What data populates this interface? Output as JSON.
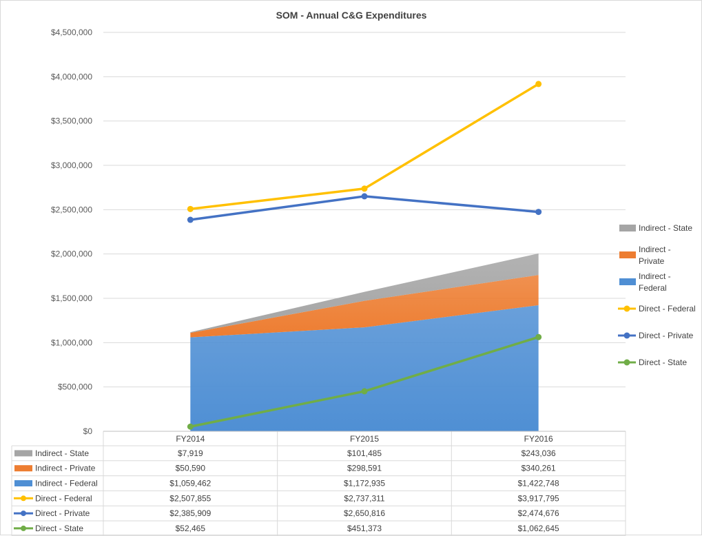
{
  "chart_data": {
    "type": "area+line with data table",
    "title": "SOM - Annual C&G Expenditures",
    "categories": [
      "FY2014",
      "FY2015",
      "FY2016"
    ],
    "ylim": [
      0,
      4500000
    ],
    "yticks": [
      0,
      500000,
      1000000,
      1500000,
      2000000,
      2500000,
      3000000,
      3500000,
      4000000,
      4500000
    ],
    "ytick_labels": [
      "$0",
      "$500,000",
      "$1,000,000",
      "$1,500,000",
      "$2,000,000",
      "$2,500,000",
      "$3,000,000",
      "$3,500,000",
      "$4,000,000",
      "$4,500,000"
    ],
    "grid": true,
    "legend_position": "right",
    "stacked_area_series": [
      {
        "name": "Indirect - Federal",
        "values": [
          1059462,
          1172935,
          1422748
        ],
        "color": "#4f8fd4"
      },
      {
        "name": "Indirect - Private",
        "values": [
          50590,
          298591,
          340261
        ],
        "color": "#ed7d31"
      },
      {
        "name": "Indirect - State",
        "values": [
          7919,
          101485,
          243036
        ],
        "color": "#a5a5a5"
      }
    ],
    "line_series": [
      {
        "name": "Direct - Federal",
        "values": [
          2507855,
          2737311,
          3917795
        ],
        "color": "#ffc000"
      },
      {
        "name": "Direct - Private",
        "values": [
          2385909,
          2650816,
          2474676
        ],
        "color": "#4472c4"
      },
      {
        "name": "Direct - State",
        "values": [
          52465,
          451373,
          1062645
        ],
        "color": "#70ad47"
      }
    ],
    "legend": [
      {
        "name": "Indirect - State",
        "lines": [
          "Indirect - State"
        ],
        "kind": "area",
        "color": "#a5a5a5"
      },
      {
        "name": "Indirect - Private",
        "lines": [
          "Indirect -",
          "Private"
        ],
        "kind": "area",
        "color": "#ed7d31"
      },
      {
        "name": "Indirect - Federal",
        "lines": [
          "Indirect -",
          "Federal"
        ],
        "kind": "area",
        "color": "#4f8fd4"
      },
      {
        "name": "Direct - Federal",
        "lines": [
          "Direct - Federal"
        ],
        "kind": "line",
        "color": "#ffc000"
      },
      {
        "name": "Direct - Private",
        "lines": [
          "Direct - Private"
        ],
        "kind": "line",
        "color": "#4472c4"
      },
      {
        "name": "Direct - State",
        "lines": [
          "Direct - State"
        ],
        "kind": "line",
        "color": "#70ad47"
      }
    ],
    "data_table": {
      "columns": [
        "FY2014",
        "FY2015",
        "FY2016"
      ],
      "rows": [
        {
          "name": "Indirect - State",
          "kind": "area",
          "color": "#a5a5a5",
          "cells": [
            "$7,919",
            "$101,485",
            "$243,036"
          ]
        },
        {
          "name": "Indirect - Private",
          "kind": "area",
          "color": "#ed7d31",
          "cells": [
            "$50,590",
            "$298,591",
            "$340,261"
          ]
        },
        {
          "name": "Indirect - Federal",
          "kind": "area",
          "color": "#4f8fd4",
          "cells": [
            "$1,059,462",
            "$1,172,935",
            "$1,422,748"
          ]
        },
        {
          "name": "Direct - Federal",
          "kind": "line",
          "color": "#ffc000",
          "cells": [
            "$2,507,855",
            "$2,737,311",
            "$3,917,795"
          ]
        },
        {
          "name": "Direct - Private",
          "kind": "line",
          "color": "#4472c4",
          "cells": [
            "$2,385,909",
            "$2,650,816",
            "$2,474,676"
          ]
        },
        {
          "name": "Direct - State",
          "kind": "line",
          "color": "#70ad47",
          "cells": [
            "$52,465",
            "$451,373",
            "$1,062,645"
          ]
        }
      ]
    }
  }
}
